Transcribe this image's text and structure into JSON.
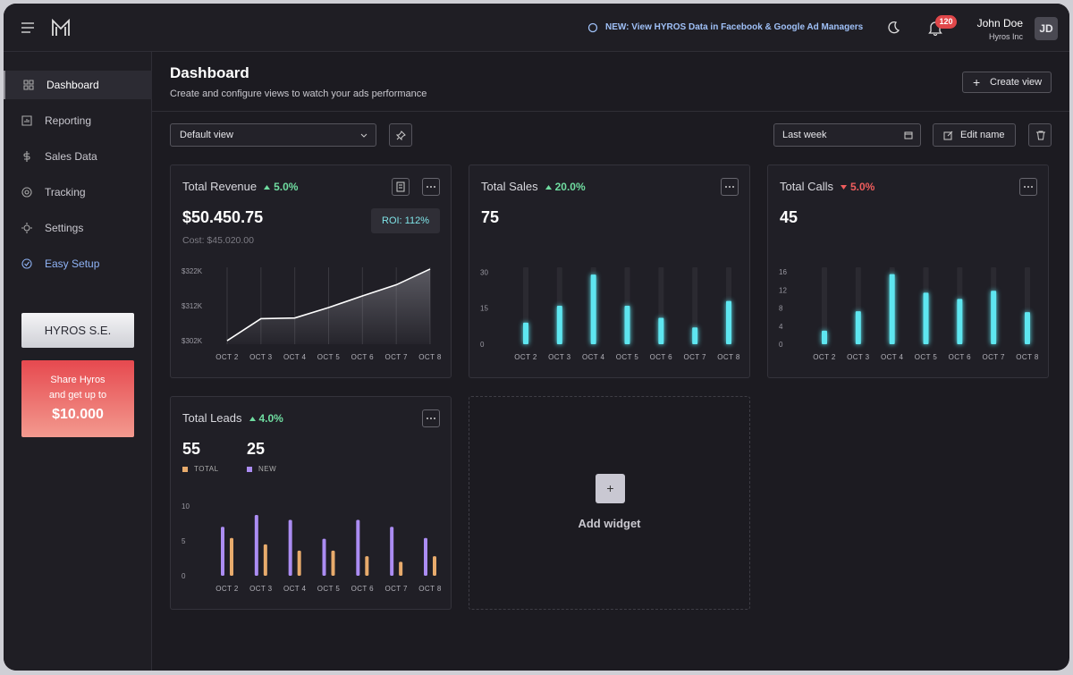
{
  "topbar": {
    "announcement": "NEW: View HYROS Data in Facebook & Google Ad Managers",
    "notifications": "120",
    "user_name": "John Doe",
    "company": "Hyros Inc",
    "initials": "JD"
  },
  "sidebar": {
    "nav": [
      "Dashboard",
      "Reporting",
      "Sales Data",
      "Tracking",
      "Settings",
      "Easy Setup"
    ],
    "active": 0,
    "promo_badge": "HYROS S.E.",
    "promo_text": "Share Hyros and get up to",
    "promo_amount": "$10.000"
  },
  "header": {
    "title": "Dashboard",
    "subtitle": "Create and configure views to watch your ads performance",
    "create_button": "Create view"
  },
  "toolbar": {
    "view_select": "Default view",
    "period_select": "Last week",
    "edit_button": "Edit name"
  },
  "widgets": [
    {
      "title": "Total Revenue",
      "change": "5.0%",
      "direction": "up",
      "value": "$50.450.75",
      "cost": "Cost: $45.020.00",
      "roi": "ROI: 112%",
      "chart_data": {
        "type": "line",
        "categories": [
          "OCT 2",
          "OCT 3",
          "OCT 4",
          "OCT 5",
          "OCT 6",
          "OCT 7",
          "OCT 8"
        ],
        "values": [
          302,
          308.3,
          308.5,
          311.5,
          314.8,
          318,
          322.5
        ],
        "color": "#ffffff",
        "ylim": [
          301,
          323
        ],
        "yticks": [
          {
            "value": 302,
            "label": "$302K"
          },
          {
            "value": 312,
            "label": "$312K"
          },
          {
            "value": 322,
            "label": "$322K"
          }
        ]
      }
    },
    {
      "title": "Total Sales",
      "change": "20.0%",
      "direction": "up",
      "value": "75",
      "chart_data": {
        "type": "bar",
        "categories": [
          "OCT 2",
          "OCT 3",
          "OCT 4",
          "OCT 5",
          "OCT 6",
          "OCT 7",
          "OCT 8"
        ],
        "values": [
          9,
          16,
          29,
          16,
          11,
          7,
          18
        ],
        "color": "#5ee6f0",
        "ylim": [
          0,
          32
        ],
        "yticks": [
          0,
          15,
          30
        ]
      }
    },
    {
      "title": "Total Calls",
      "change": "5.0%",
      "direction": "down",
      "value": "45",
      "chart_data": {
        "type": "bar",
        "categories": [
          "OCT 2",
          "OCT 3",
          "OCT 4",
          "OCT 5",
          "OCT 6",
          "OCT 7",
          "OCT 8"
        ],
        "values": [
          3,
          7.3,
          15.5,
          11.4,
          10,
          11.8,
          7.1
        ],
        "color": "#5ee6f0",
        "ylim": [
          0,
          17
        ],
        "yticks": [
          0,
          4,
          8,
          12,
          16
        ]
      }
    },
    {
      "title": "Total Leads",
      "change": "4.0%",
      "direction": "up",
      "totals": [
        "55",
        "25"
      ],
      "chart_data": {
        "type": "grouped_bar",
        "categories": [
          "OCT 2",
          "OCT 3",
          "OCT 4",
          "OCT 5",
          "OCT 6",
          "OCT 7",
          "OCT 8"
        ],
        "ylim": [
          0,
          11
        ],
        "yticks": [
          0,
          5,
          10
        ],
        "series": [
          {
            "name": "TOTAL",
            "color": "#e8ab6c",
            "values": [
              5.4,
              4.5,
              3.6,
              3.6,
              2.8,
              2,
              2.8
            ]
          },
          {
            "name": "NEW",
            "color": "#ab8cf2",
            "values": [
              7,
              8.7,
              8,
              5.3,
              8,
              7,
              5.4
            ]
          }
        ]
      }
    }
  ],
  "add_widget": "Add widget"
}
